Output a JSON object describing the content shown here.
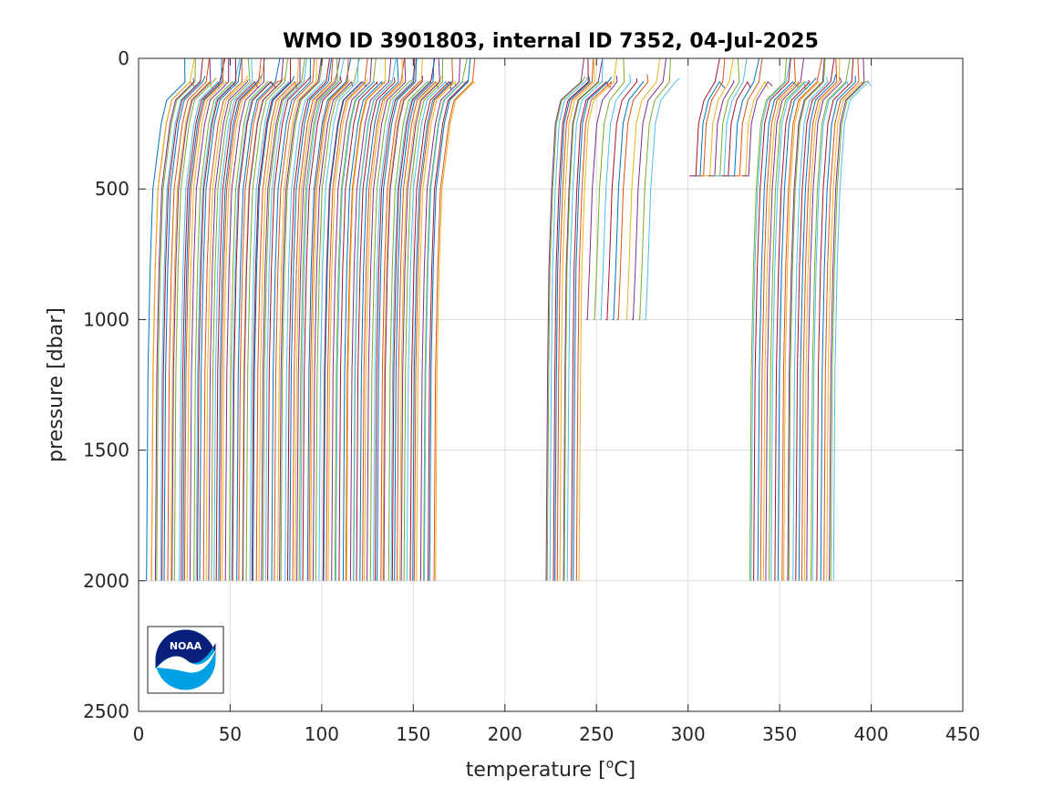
{
  "chart_data": {
    "type": "line",
    "title": "WMO ID 3901803, internal ID 7352, 04-Jul-2025",
    "xlabel": "temperature [°C]",
    "xlabel_main": "temperature [",
    "xlabel_sup": "o",
    "xlabel_tail": "C]",
    "ylabel": "pressure [dbar]",
    "xlim": [
      0,
      450
    ],
    "ylim": [
      0,
      2500
    ],
    "y_reversed": true,
    "grid": true,
    "xticks": [
      0,
      50,
      100,
      150,
      200,
      250,
      300,
      350,
      400,
      450
    ],
    "yticks": [
      0,
      500,
      1000,
      1500,
      2000,
      2500
    ],
    "xtick_labels": [
      "0",
      "50",
      "100",
      "150",
      "200",
      "250",
      "300",
      "350",
      "400",
      "450"
    ],
    "ytick_labels": [
      "0",
      "500",
      "1000",
      "1500",
      "2000",
      "2500"
    ],
    "series_colors": [
      "#0072bd",
      "#d95319",
      "#edb120",
      "#7e2f8e",
      "#77ac30",
      "#4dbeee",
      "#a2142f"
    ],
    "profile_groups": [
      {
        "x_start": 5,
        "x_end": 162,
        "count": 115,
        "surface_offset": 22,
        "shallow_offset": 8,
        "mid_offset": 2,
        "max_pressure": 2000
      },
      {
        "x_start": 222,
        "x_end": 240,
        "count": 14,
        "surface_offset": 20,
        "shallow_offset": 5,
        "mid_offset": 1.5,
        "max_pressure": 2000
      },
      {
        "x_start": 244,
        "x_end": 276,
        "count": 10,
        "surface_offset": 18,
        "shallow_offset": 6,
        "mid_offset": 2,
        "max_pressure": 1000
      },
      {
        "x_start": 300,
        "x_end": 330,
        "count": 12,
        "surface_offset": 15,
        "shallow_offset": 5,
        "mid_offset": 2,
        "max_pressure": 450
      },
      {
        "x_start": 333,
        "x_end": 380,
        "count": 30,
        "surface_offset": 20,
        "shallow_offset": 6,
        "mid_offset": 2,
        "max_pressure": 2000
      }
    ],
    "annotations": [
      "NOAA logo at lower left"
    ]
  },
  "logo": {
    "text": "NOAA",
    "colors": {
      "navy": "#0a1f7a",
      "sky": "#00a0e4",
      "white": "#ffffff"
    }
  }
}
